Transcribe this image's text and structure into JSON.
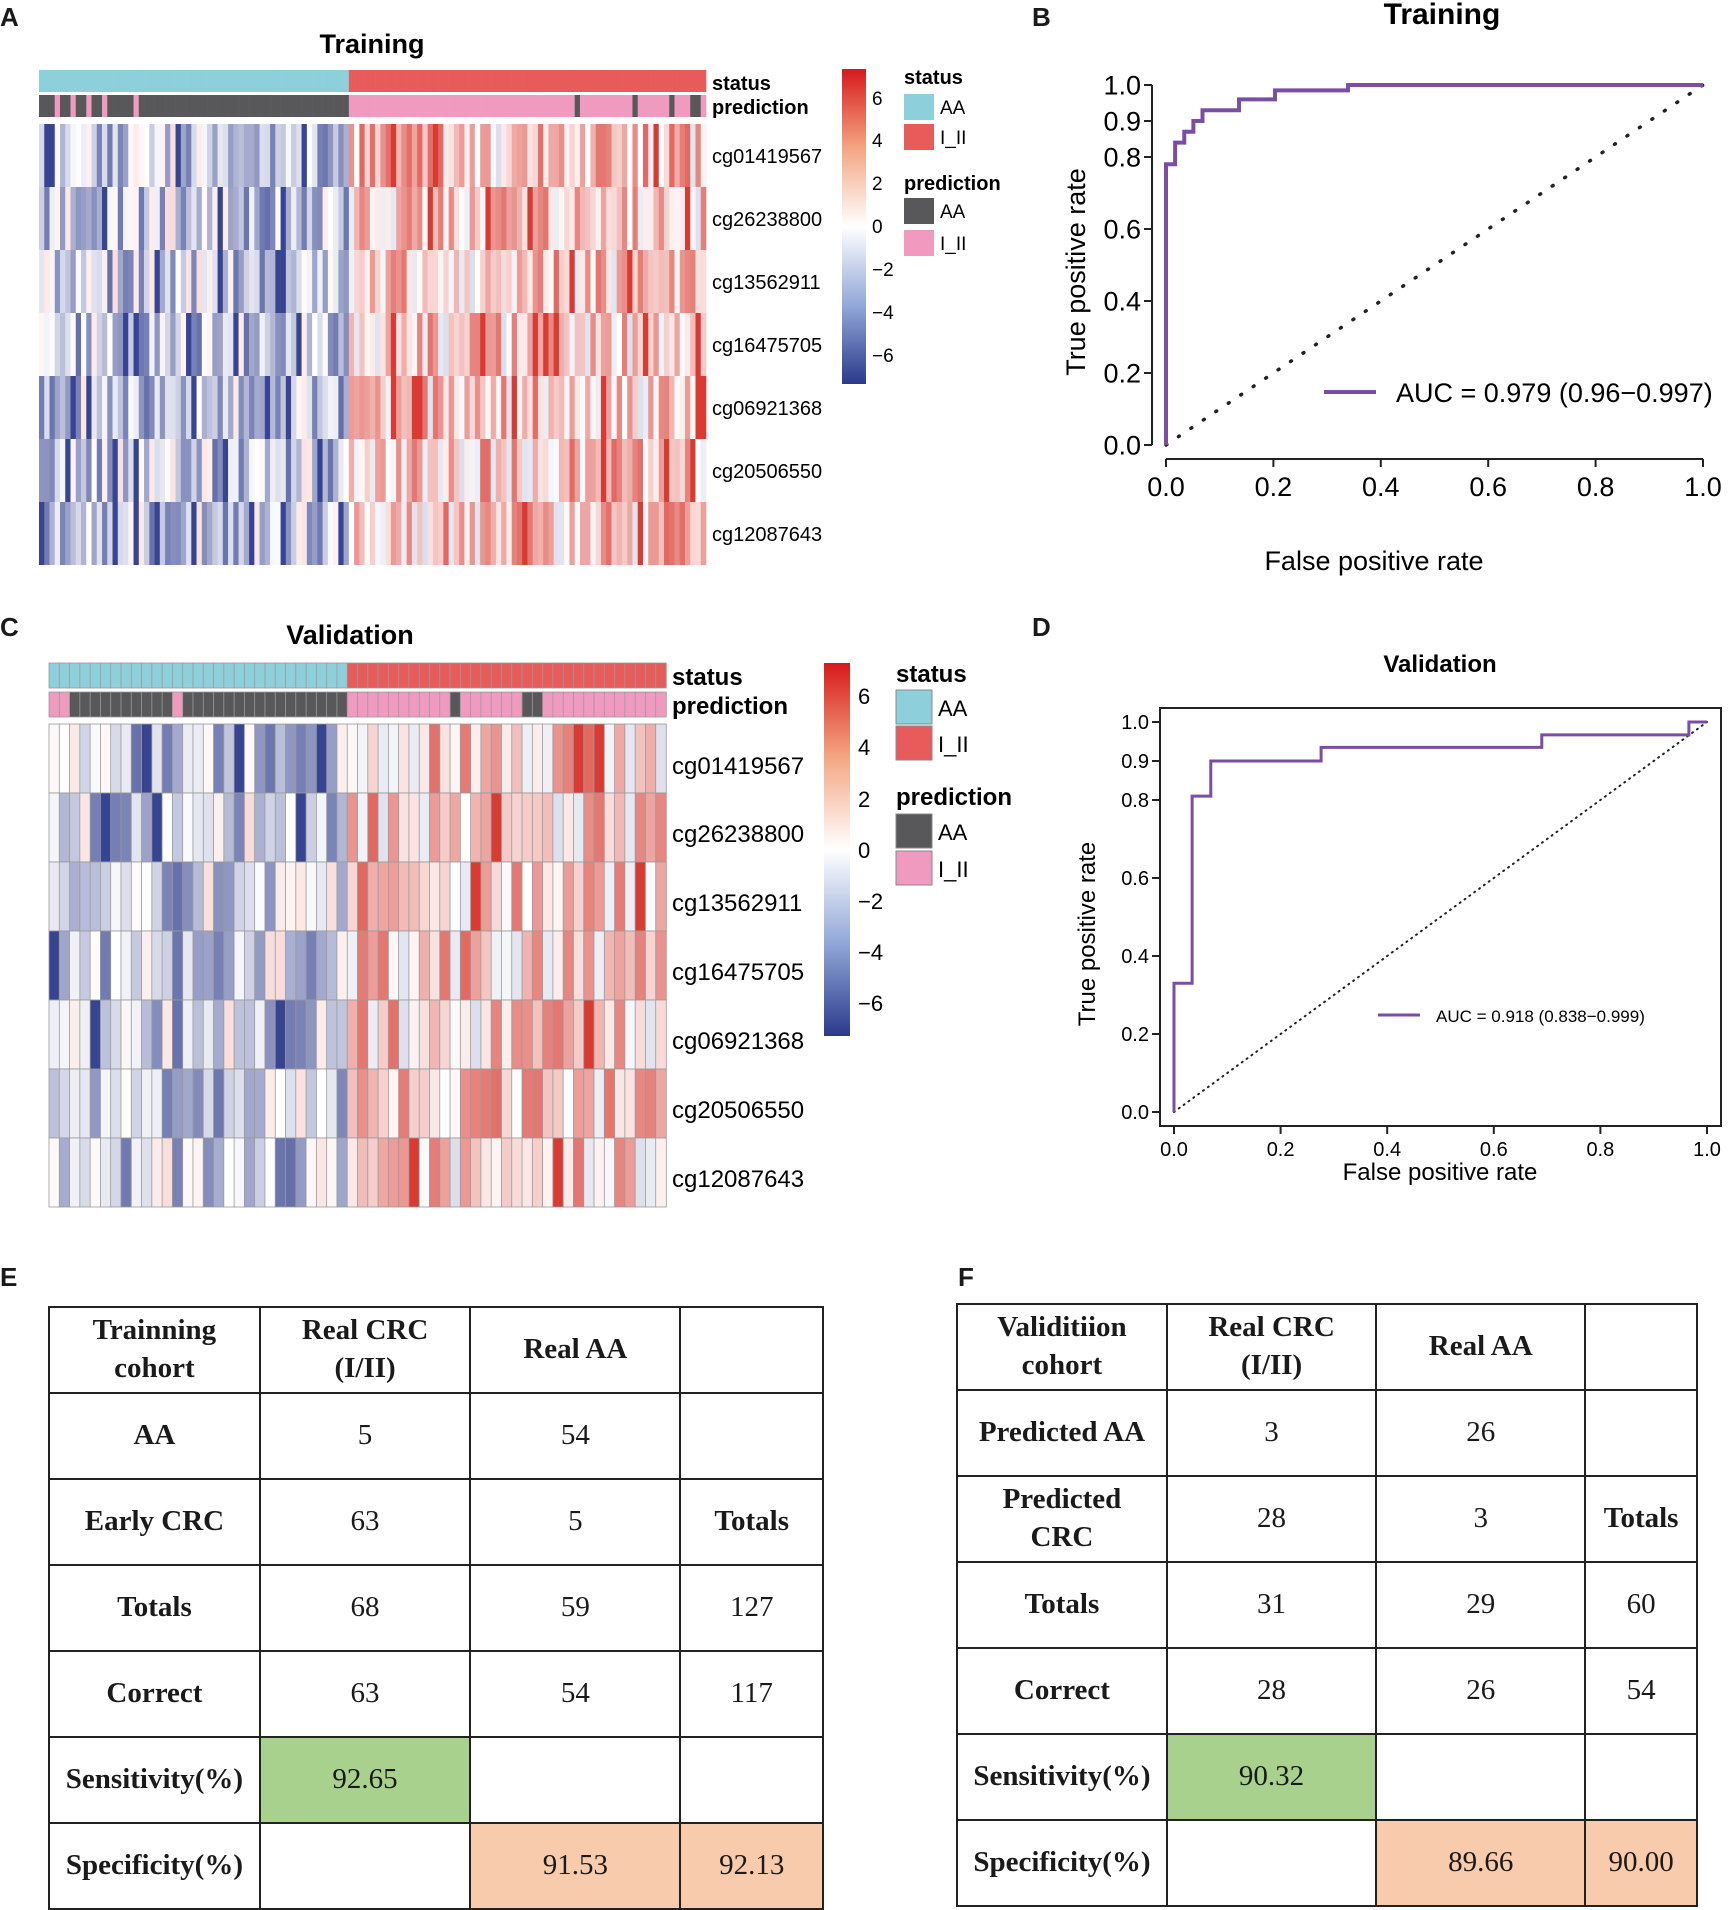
{
  "panels": {
    "A": "A",
    "B": "B",
    "C": "C",
    "D": "D",
    "E": "E",
    "F": "F"
  },
  "colors": {
    "aa_status": "#8ecfdc",
    "iii_status": "#e85b5b",
    "aa_pred": "#58585a",
    "iii_pred": "#f09ac0",
    "roc_line": "#7b4ea6",
    "table_green": "#a9d18e",
    "table_peach": "#f8cbad"
  },
  "heatmap_training": {
    "title": "Training",
    "annotation_labels": [
      "status",
      "prediction"
    ],
    "genes": [
      "cg01419567",
      "cg26238800",
      "cg13562911",
      "cg16475705",
      "cg06921368",
      "cg20506550",
      "cg12087643"
    ],
    "scale_ticks": [
      "6",
      "4",
      "2",
      "0",
      "−2",
      "−4",
      "−6"
    ],
    "legend_status_title": "status",
    "legend_prediction_title": "prediction",
    "legend_items": [
      "AA",
      "I_II"
    ]
  },
  "heatmap_validation": {
    "title": "Validation",
    "annotation_labels": [
      "status",
      "prediction"
    ],
    "genes": [
      "cg01419567",
      "cg26238800",
      "cg13562911",
      "cg16475705",
      "cg06921368",
      "cg20506550",
      "cg12087643"
    ],
    "scale_ticks": [
      "6",
      "4",
      "2",
      "0",
      "−2",
      "−4",
      "−6"
    ],
    "legend_status_title": "status",
    "legend_prediction_title": "prediction",
    "legend_items": [
      "AA",
      "I_II"
    ]
  },
  "chart_data": [
    {
      "type": "line",
      "title": "Training",
      "xlabel": "False positive rate",
      "ylabel": "True positive rate",
      "xlim": [
        0,
        1
      ],
      "ylim": [
        0,
        1
      ],
      "x_ticks": [
        "0.0",
        "0.2",
        "0.4",
        "0.6",
        "0.8",
        "1.0"
      ],
      "y_ticks": [
        "0.0",
        "0.2",
        "0.4",
        "0.6",
        "0.8",
        "0.9",
        "1.0"
      ],
      "legend": "AUC = 0.979 (0.96−0.997)",
      "series": [
        {
          "name": "ROC",
          "x": [
            0,
            0,
            0.017,
            0.017,
            0.034,
            0.034,
            0.051,
            0.051,
            0.068,
            0.068,
            0.068,
            0.136,
            0.136,
            0.203,
            0.203,
            0.339,
            0.339,
            1.0
          ],
          "y": [
            0,
            0.78,
            0.78,
            0.84,
            0.84,
            0.87,
            0.87,
            0.9,
            0.9,
            0.93,
            0.93,
            0.93,
            0.96,
            0.96,
            0.985,
            0.985,
            1.0,
            1.0
          ]
        },
        {
          "name": "diagonal",
          "x": [
            0,
            1
          ],
          "y": [
            0,
            1
          ]
        }
      ]
    },
    {
      "type": "line",
      "title": "Validation",
      "xlabel": "False positive rate",
      "ylabel": "True positive rate",
      "xlim": [
        0,
        1
      ],
      "ylim": [
        0,
        1
      ],
      "x_ticks": [
        "0.0",
        "0.2",
        "0.4",
        "0.6",
        "0.8",
        "1.0"
      ],
      "y_ticks": [
        "0.0",
        "0.2",
        "0.4",
        "0.6",
        "0.8",
        "0.9",
        "1.0"
      ],
      "legend": "AUC = 0.918 (0.838−0.999)",
      "series": [
        {
          "name": "ROC",
          "x": [
            0,
            0,
            0.034,
            0.034,
            0.069,
            0.069,
            0.276,
            0.276,
            0.69,
            0.69,
            0.966,
            0.966,
            1.0
          ],
          "y": [
            0,
            0.33,
            0.33,
            0.81,
            0.81,
            0.9,
            0.9,
            0.935,
            0.935,
            0.967,
            0.967,
            1.0,
            1.0
          ]
        },
        {
          "name": "diagonal",
          "x": [
            0,
            1
          ],
          "y": [
            0,
            1
          ]
        }
      ]
    },
    {
      "type": "table",
      "title": "Trainning cohort",
      "rows": [
        [
          "Trainning cohort",
          "Real CRC (I/II)",
          "Real AA",
          ""
        ],
        [
          "AA",
          "5",
          "54",
          ""
        ],
        [
          "Early CRC",
          "63",
          "5",
          "Totals"
        ],
        [
          "Totals",
          "68",
          "59",
          "127"
        ],
        [
          "Correct",
          "63",
          "54",
          "117"
        ],
        [
          "Sensitivity(%)",
          "92.65",
          "",
          ""
        ],
        [
          "Specificity(%)",
          "",
          "91.53",
          "92.13"
        ]
      ]
    },
    {
      "type": "table",
      "title": "Validitiion cohort",
      "rows": [
        [
          "Validitiion cohort",
          "Real CRC (I/II)",
          "Real AA",
          ""
        ],
        [
          "Predicted AA",
          "3",
          "26",
          ""
        ],
        [
          "Predicted CRC",
          "28",
          "3",
          "Totals"
        ],
        [
          "Totals",
          "31",
          "29",
          "60"
        ],
        [
          "Correct",
          "28",
          "26",
          "54"
        ],
        [
          "Sensitivity(%)",
          "90.32",
          "",
          ""
        ],
        [
          "Specificity(%)",
          "",
          "89.66",
          "90.00"
        ]
      ]
    }
  ]
}
